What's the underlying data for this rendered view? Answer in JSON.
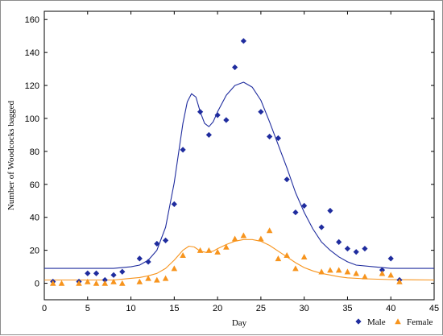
{
  "chart_data": {
    "type": "scatter",
    "title": "",
    "xlabel": "Day",
    "ylabel": "Number of Woodcocks bagged",
    "xlim": [
      0,
      45
    ],
    "ylim": [
      -10,
      165
    ],
    "xticks": [
      0,
      5,
      10,
      15,
      20,
      25,
      30,
      35,
      40,
      45
    ],
    "yticks": [
      0,
      20,
      40,
      60,
      80,
      100,
      120,
      140,
      160
    ],
    "grid": false,
    "legend_position": "bottom-right",
    "series": [
      {
        "name": "Male",
        "marker": "diamond",
        "color": "#1f2c9e",
        "points": [
          [
            1,
            1
          ],
          [
            4,
            1
          ],
          [
            5,
            6
          ],
          [
            6,
            6
          ],
          [
            7,
            2
          ],
          [
            8,
            5
          ],
          [
            9,
            7
          ],
          [
            11,
            15
          ],
          [
            12,
            13
          ],
          [
            13,
            24
          ],
          [
            14,
            26
          ],
          [
            15,
            48
          ],
          [
            16,
            81
          ],
          [
            18,
            104
          ],
          [
            19,
            90
          ],
          [
            20,
            102
          ],
          [
            21,
            99
          ],
          [
            22,
            131
          ],
          [
            23,
            147
          ],
          [
            25,
            104
          ],
          [
            26,
            89
          ],
          [
            27,
            88
          ],
          [
            28,
            63
          ],
          [
            29,
            43
          ],
          [
            30,
            47
          ],
          [
            32,
            34
          ],
          [
            33,
            44
          ],
          [
            34,
            25
          ],
          [
            35,
            21
          ],
          [
            36,
            19
          ],
          [
            37,
            21
          ],
          [
            39,
            8
          ],
          [
            40,
            15
          ],
          [
            41,
            2
          ]
        ],
        "fit": [
          [
            0,
            9
          ],
          [
            8,
            9
          ],
          [
            10,
            10
          ],
          [
            11,
            11
          ],
          [
            12,
            14
          ],
          [
            13,
            20
          ],
          [
            14,
            34
          ],
          [
            15,
            61
          ],
          [
            15.5,
            79
          ],
          [
            16,
            97
          ],
          [
            16.5,
            110
          ],
          [
            17,
            115
          ],
          [
            17.5,
            113
          ],
          [
            18,
            104
          ],
          [
            18.5,
            97
          ],
          [
            19,
            95
          ],
          [
            19.5,
            98
          ],
          [
            20,
            104
          ],
          [
            21,
            114
          ],
          [
            22,
            120
          ],
          [
            23,
            122
          ],
          [
            24,
            119
          ],
          [
            25,
            111
          ],
          [
            26,
            98
          ],
          [
            27,
            84
          ],
          [
            28,
            70
          ],
          [
            29,
            55
          ],
          [
            30,
            43
          ],
          [
            31,
            33
          ],
          [
            32,
            25
          ],
          [
            33,
            20
          ],
          [
            34,
            16
          ],
          [
            35,
            13
          ],
          [
            36,
            11
          ],
          [
            38,
            10
          ],
          [
            40,
            9
          ],
          [
            45,
            9
          ]
        ]
      },
      {
        "name": "Female",
        "marker": "triangle",
        "color": "#f7941d",
        "points": [
          [
            1,
            0
          ],
          [
            2,
            0
          ],
          [
            4,
            0
          ],
          [
            5,
            1
          ],
          [
            6,
            0
          ],
          [
            7,
            0
          ],
          [
            8,
            1
          ],
          [
            9,
            0
          ],
          [
            11,
            1
          ],
          [
            12,
            3
          ],
          [
            13,
            2
          ],
          [
            14,
            3
          ],
          [
            15,
            9
          ],
          [
            16,
            17
          ],
          [
            18,
            20
          ],
          [
            19,
            20
          ],
          [
            20,
            19
          ],
          [
            21,
            22
          ],
          [
            22,
            27
          ],
          [
            23,
            29
          ],
          [
            25,
            27
          ],
          [
            26,
            32
          ],
          [
            27,
            15
          ],
          [
            28,
            17
          ],
          [
            29,
            9
          ],
          [
            30,
            16
          ],
          [
            32,
            7
          ],
          [
            33,
            8
          ],
          [
            34,
            8
          ],
          [
            35,
            7
          ],
          [
            36,
            6
          ],
          [
            37,
            4
          ],
          [
            39,
            6
          ],
          [
            40,
            5
          ],
          [
            41,
            1
          ]
        ],
        "fit": [
          [
            0,
            2
          ],
          [
            8,
            2
          ],
          [
            10,
            3
          ],
          [
            11,
            3.5
          ],
          [
            12,
            4.5
          ],
          [
            13,
            6
          ],
          [
            14,
            9
          ],
          [
            15,
            14
          ],
          [
            16,
            20
          ],
          [
            16.7,
            22.5
          ],
          [
            17.3,
            22
          ],
          [
            18,
            19.5
          ],
          [
            18.7,
            18.7
          ],
          [
            19.5,
            19.5
          ],
          [
            20,
            21
          ],
          [
            21,
            23.5
          ],
          [
            22,
            25.5
          ],
          [
            23,
            26.5
          ],
          [
            24,
            26.5
          ],
          [
            25,
            25.5
          ],
          [
            26,
            23
          ],
          [
            27,
            19.5
          ],
          [
            28,
            16
          ],
          [
            29,
            12.5
          ],
          [
            30,
            9.5
          ],
          [
            31,
            7.5
          ],
          [
            32,
            6
          ],
          [
            33,
            5
          ],
          [
            34,
            4
          ],
          [
            35,
            3.3
          ],
          [
            37,
            2.7
          ],
          [
            40,
            2.2
          ],
          [
            45,
            2
          ]
        ]
      }
    ]
  }
}
